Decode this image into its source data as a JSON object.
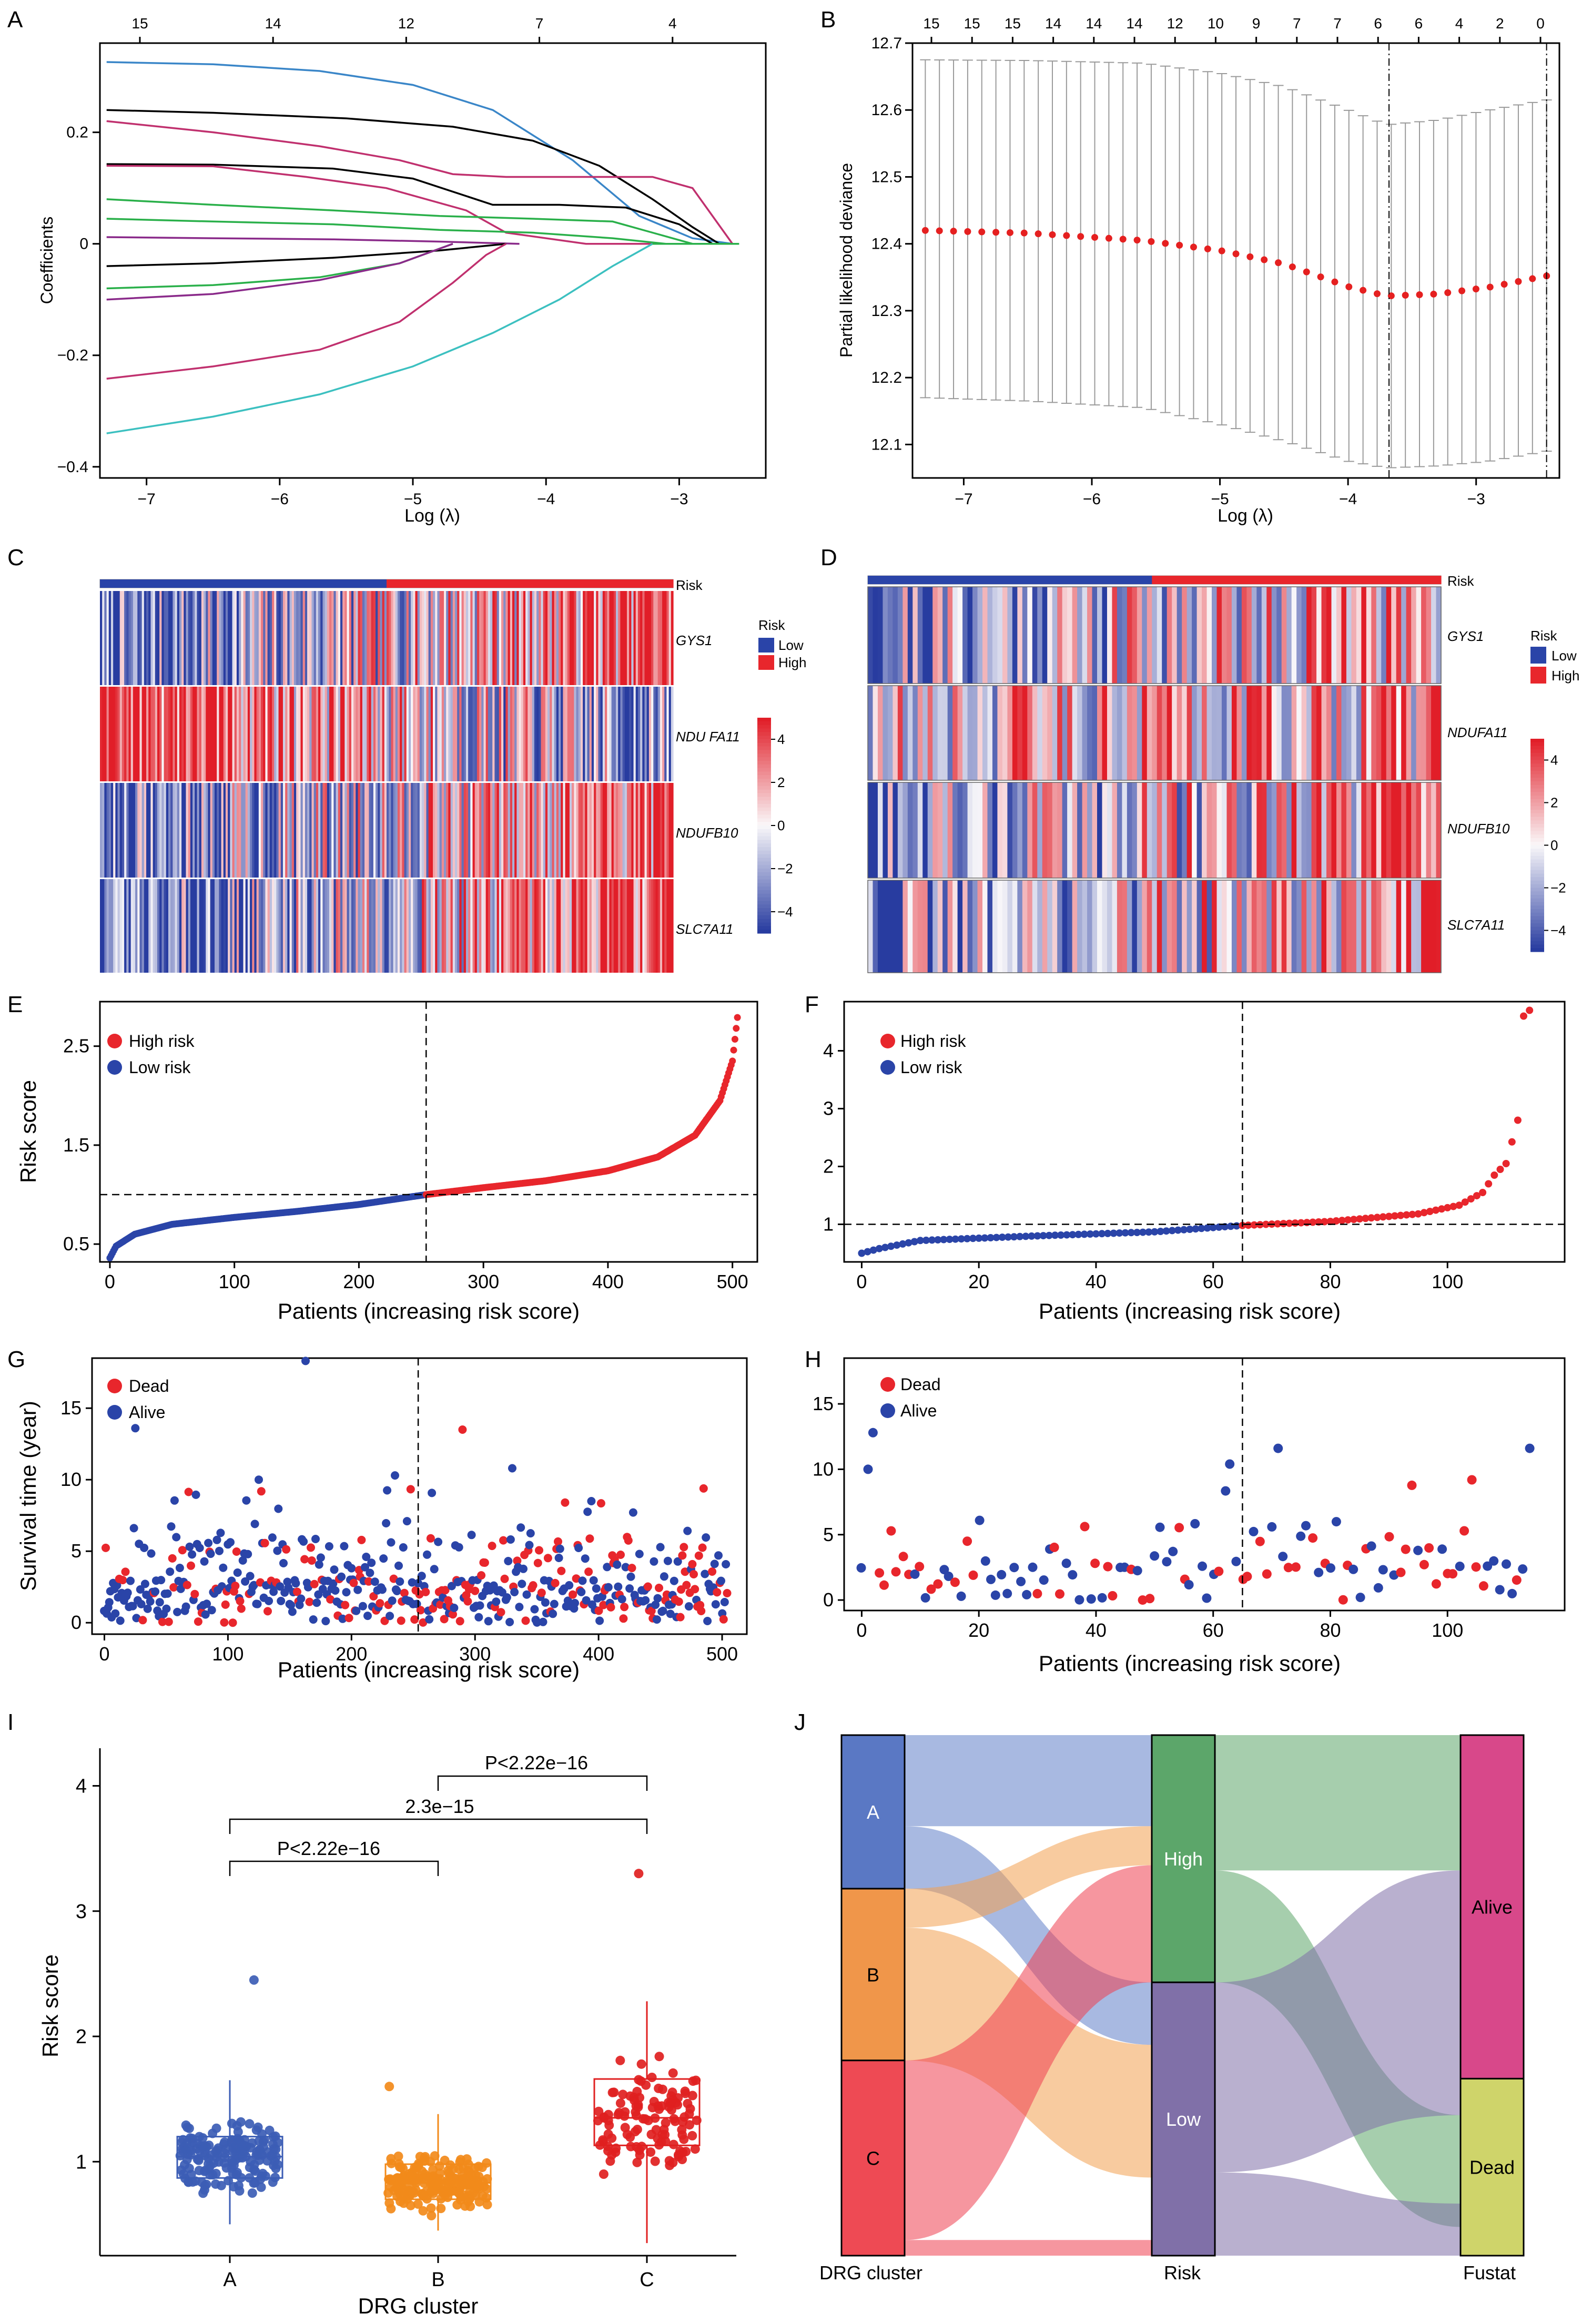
{
  "panels": {
    "A": {
      "letter": "A",
      "xlabel": "Log (λ)",
      "ylabel": "Coefficients",
      "top_ticks": [
        "15",
        "14",
        "12",
        "7",
        "4"
      ]
    },
    "B": {
      "letter": "B",
      "xlabel": "Log (λ)",
      "ylabel": "Partial likelihood deviance",
      "top_ticks": [
        "15",
        "15",
        "15",
        "14",
        "14",
        "14",
        "12",
        "10",
        "9",
        "7",
        "7",
        "6",
        "6",
        "4",
        "2",
        "0"
      ]
    },
    "C": {
      "letter": "C",
      "risk_label": "Risk",
      "legend_title": "Risk",
      "legend_low": "Low",
      "legend_high": "High",
      "genes": [
        "GYS1",
        "NDU FA11",
        "NDUFB10",
        "SLC7A11"
      ],
      "scale_ticks": [
        "4",
        "2",
        "0",
        "−2",
        "−4"
      ]
    },
    "D": {
      "letter": "D",
      "risk_label": "Risk",
      "legend_title": "Risk",
      "legend_low": "Low",
      "legend_high": "High",
      "genes": [
        "GYS1",
        "NDUFA11",
        "NDUFB10",
        "SLC7A11"
      ],
      "scale_ticks": [
        "4",
        "2",
        "0",
        "−2",
        "−4"
      ]
    },
    "E": {
      "letter": "E",
      "xlabel": "Patients (increasing risk score)",
      "ylabel": "Risk score",
      "legend": [
        "High risk",
        "Low risk"
      ]
    },
    "F": {
      "letter": "F",
      "xlabel": "Patients (increasing risk score)",
      "ylabel": "",
      "legend": [
        "High risk",
        "Low risk"
      ]
    },
    "G": {
      "letter": "G",
      "xlabel": "Patients (increasing risk score)",
      "ylabel": "Survival time (year)",
      "legend": [
        "Dead",
        "Alive"
      ]
    },
    "H": {
      "letter": "H",
      "xlabel": "Patients (increasing risk score)",
      "ylabel": "",
      "legend": [
        "Dead",
        "Alive"
      ]
    },
    "I": {
      "letter": "I",
      "xlabel": "DRG cluster",
      "ylabel": "Risk score",
      "comparisons": [
        "P<2.22e−16",
        "2.3e−15",
        "P<2.22e−16"
      ]
    },
    "J": {
      "letter": "J",
      "axis_labels": [
        "DRG cluster",
        "Risk",
        "Fustat"
      ]
    }
  },
  "colors": {
    "high": "#e8262c",
    "low": "#2a44a8",
    "blue_box": "#3c5db5",
    "orange": "#f28a1a",
    "red_box": "#e02020",
    "alive": "#d8488a",
    "dead": "#cfd46a",
    "sankey_high": "#5ca66a",
    "sankey_low": "#8070a8"
  },
  "chart_data": [
    {
      "panel": "A",
      "type": "line",
      "xlabel": "Log (λ)",
      "ylabel": "Coefficients",
      "xlim": [
        -7.35,
        -2.35
      ],
      "ylim": [
        -0.42,
        0.36
      ],
      "xticks": [
        -7,
        -6,
        -5,
        -4,
        -3
      ],
      "yticks": [
        -0.4,
        -0.2,
        0,
        0.2
      ],
      "top_axis": {
        "positions": [
          -7.05,
          -6.05,
          -5.05,
          -4.05,
          -3.05
        ],
        "labels": [
          "15",
          "14",
          "12",
          "7",
          "4"
        ]
      },
      "series": [
        {
          "color": "#3a86c8",
          "x": [
            -7.3,
            -6.5,
            -5.7,
            -5.0,
            -4.4,
            -3.8,
            -3.3,
            -2.9,
            -2.6
          ],
          "y": [
            0.326,
            0.322,
            0.31,
            0.285,
            0.24,
            0.15,
            0.05,
            0.01,
            0
          ]
        },
        {
          "color": "#000000",
          "x": [
            -7.3,
            -6.5,
            -5.5,
            -4.7,
            -4.1,
            -3.6,
            -3.2,
            -2.9,
            -2.7
          ],
          "y": [
            0.24,
            0.235,
            0.225,
            0.21,
            0.185,
            0.14,
            0.08,
            0.03,
            0
          ]
        },
        {
          "color": "#c0306e",
          "x": [
            -7.3,
            -6.5,
            -5.7,
            -5.1,
            -4.7,
            -4.3,
            -3.7,
            -3.2,
            -2.9,
            -2.6
          ],
          "y": [
            0.22,
            0.2,
            0.175,
            0.15,
            0.125,
            0.12,
            0.12,
            0.12,
            0.1,
            0
          ]
        },
        {
          "color": "#000000",
          "x": [
            -7.3,
            -6.5,
            -5.6,
            -5.0,
            -4.4,
            -3.9,
            -3.4,
            -3.0,
            -2.75
          ],
          "y": [
            0.143,
            0.142,
            0.135,
            0.117,
            0.07,
            0.07,
            0.065,
            0.035,
            0
          ]
        },
        {
          "color": "#c0306e",
          "x": [
            -7.3,
            -6.5,
            -5.8,
            -5.2,
            -4.6,
            -4.3,
            -3.7,
            -3.3,
            -3.0
          ],
          "y": [
            0.14,
            0.139,
            0.12,
            0.1,
            0.06,
            0.02,
            0.0,
            0.0,
            0
          ]
        },
        {
          "color": "#2ab04a",
          "x": [
            -7.3,
            -6.5,
            -5.6,
            -4.8,
            -4.1,
            -3.5,
            -3.2,
            -2.9
          ],
          "y": [
            0.08,
            0.07,
            0.06,
            0.05,
            0.045,
            0.04,
            0.02,
            0
          ]
        },
        {
          "color": "#2ab04a",
          "x": [
            -7.3,
            -6.5,
            -5.6,
            -4.8,
            -4.1,
            -3.5,
            -3.1
          ],
          "y": [
            0.045,
            0.04,
            0.035,
            0.025,
            0.02,
            0.01,
            0
          ]
        },
        {
          "color": "#8a2a8a",
          "x": [
            -7.3,
            -6.5,
            -5.6,
            -4.8,
            -4.2
          ],
          "y": [
            0.012,
            0.01,
            0.008,
            0.004,
            0
          ]
        },
        {
          "color": "#000000",
          "x": [
            -7.3,
            -6.5,
            -5.6,
            -4.8,
            -4.3
          ],
          "y": [
            -0.04,
            -0.035,
            -0.025,
            -0.012,
            0
          ]
        },
        {
          "color": "#2ab04a",
          "x": [
            -7.3,
            -6.5,
            -5.7,
            -5.1,
            -4.7
          ],
          "y": [
            -0.08,
            -0.074,
            -0.06,
            -0.035,
            0
          ]
        },
        {
          "color": "#8a2a8a",
          "x": [
            -7.3,
            -6.5,
            -5.7,
            -5.1,
            -4.7
          ],
          "y": [
            -0.1,
            -0.09,
            -0.065,
            -0.035,
            0
          ]
        },
        {
          "color": "#c0306e",
          "x": [
            -7.3,
            -6.5,
            -5.7,
            -5.1,
            -4.7,
            -4.45,
            -4.3
          ],
          "y": [
            -0.242,
            -0.22,
            -0.19,
            -0.14,
            -0.07,
            -0.02,
            0
          ]
        },
        {
          "color": "#3cc0c0",
          "x": [
            -7.3,
            -6.5,
            -5.7,
            -5.0,
            -4.4,
            -3.9,
            -3.5,
            -3.2
          ],
          "y": [
            -0.34,
            -0.31,
            -0.27,
            -0.22,
            -0.16,
            -0.1,
            -0.04,
            0
          ]
        }
      ]
    },
    {
      "panel": "B",
      "type": "scatter",
      "xlabel": "Log (λ)",
      "ylabel": "Partial likelihood deviance",
      "xlim": [
        -7.4,
        -2.35
      ],
      "ylim": [
        12.05,
        12.7
      ],
      "xticks": [
        -7,
        -6,
        -5,
        -4,
        -3
      ],
      "yticks": [
        12.1,
        12.2,
        12.3,
        12.4,
        12.5,
        12.6,
        12.7
      ],
      "n_points": 45,
      "x_first": -7.3,
      "x_last": -2.45,
      "mean_profile": {
        "x": [
          -7.3,
          -6.5,
          -5.6,
          -5.0,
          -4.5,
          -4.0,
          -3.7,
          -3.3,
          -2.9,
          -2.45
        ],
        "y": [
          12.42,
          12.416,
          12.405,
          12.39,
          12.37,
          12.336,
          12.322,
          12.325,
          12.335,
          12.352
        ]
      },
      "upper_profile": {
        "x": [
          -7.3,
          -6.5,
          -5.6,
          -5.0,
          -4.5,
          -4.0,
          -3.7,
          -3.3,
          -2.9,
          -2.45
        ],
        "y": [
          12.675,
          12.674,
          12.67,
          12.655,
          12.635,
          12.6,
          12.578,
          12.585,
          12.6,
          12.615
        ]
      },
      "lower_profile": {
        "x": [
          -7.3,
          -6.5,
          -5.6,
          -5.0,
          -4.5,
          -4.0,
          -3.7,
          -3.3,
          -2.9,
          -2.45
        ],
        "y": [
          12.17,
          12.165,
          12.155,
          12.13,
          12.105,
          12.075,
          12.065,
          12.068,
          12.075,
          12.09
        ]
      },
      "vlines": [
        -3.68,
        -2.45
      ],
      "top_axis": {
        "labels": [
          "15",
          "15",
          "15",
          "14",
          "14",
          "14",
          "12",
          "10",
          "9",
          "7",
          "7",
          "6",
          "6",
          "4",
          "2",
          "0"
        ]
      }
    },
    {
      "panel": "E",
      "type": "scatter",
      "xlabel": "Patients (increasing risk score)",
      "ylabel": "Risk score",
      "n": 505,
      "cutoff_index": 254,
      "threshold": 1.0,
      "xlim": [
        -8,
        520
      ],
      "ylim": [
        0.32,
        2.95
      ],
      "xticks": [
        0,
        100,
        200,
        300,
        400,
        500
      ],
      "yticks": [
        0.5,
        1.5,
        2.5
      ],
      "profile": {
        "x": [
          0,
          5,
          20,
          50,
          100,
          150,
          200,
          254,
          300,
          350,
          400,
          440,
          470,
          490,
          500,
          505
        ],
        "y": [
          0.36,
          0.48,
          0.6,
          0.7,
          0.77,
          0.83,
          0.9,
          1.0,
          1.07,
          1.14,
          1.24,
          1.38,
          1.6,
          1.95,
          2.35,
          2.9
        ]
      }
    },
    {
      "panel": "F",
      "type": "scatter",
      "xlabel": "Patients (increasing risk score)",
      "n": 115,
      "cutoff_index": 65,
      "threshold": 1.0,
      "xlim": [
        -3,
        120
      ],
      "ylim": [
        0.35,
        4.85
      ],
      "xticks": [
        0,
        20,
        40,
        60,
        80,
        100
      ],
      "yticks": [
        1,
        2,
        3,
        4
      ],
      "profile": {
        "x": [
          0,
          3,
          10,
          30,
          50,
          65,
          80,
          95,
          102,
          106,
          108,
          110,
          112,
          113,
          114
        ],
        "y": [
          0.5,
          0.58,
          0.72,
          0.8,
          0.87,
          0.98,
          1.05,
          1.18,
          1.33,
          1.55,
          1.85,
          2.05,
          2.8,
          4.6,
          4.7
        ]
      }
    },
    {
      "panel": "G",
      "type": "scatter",
      "xlabel": "Patients (increasing risk score)",
      "ylabel": "Survival time (year)",
      "n": 505,
      "cutoff_index": 254,
      "xlim": [
        -10,
        520
      ],
      "ylim": [
        -0.8,
        18.5
      ],
      "xticks": [
        0,
        100,
        200,
        300,
        400,
        500
      ],
      "yticks": [
        0,
        5,
        10,
        15
      ],
      "outliers": [
        {
          "x": 25,
          "y": 13.6,
          "status": "Alive"
        },
        {
          "x": 163,
          "y": 18.3,
          "status": "Alive"
        },
        {
          "x": 290,
          "y": 13.5,
          "status": "Dead"
        },
        {
          "x": 330,
          "y": 10.8,
          "status": "Alive"
        },
        {
          "x": 235,
          "y": 10.3,
          "status": "Alive"
        },
        {
          "x": 125,
          "y": 10.0,
          "status": "Alive"
        }
      ]
    },
    {
      "panel": "H",
      "type": "scatter",
      "xlabel": "Patients (increasing risk score)",
      "n": 115,
      "cutoff_index": 65,
      "xlim": [
        -3,
        120
      ],
      "ylim": [
        -0.8,
        18.5
      ],
      "xticks": [
        0,
        20,
        40,
        60,
        80,
        100
      ],
      "yticks": [
        0,
        5,
        10,
        15
      ],
      "outliers": [
        {
          "x": 2,
          "y": 12.8,
          "status": "Alive"
        },
        {
          "x": 1,
          "y": 10.0,
          "status": "Alive"
        },
        {
          "x": 71,
          "y": 11.6,
          "status": "Alive"
        },
        {
          "x": 114,
          "y": 11.6,
          "status": "Alive"
        },
        {
          "x": 63,
          "y": 10.4,
          "status": "Alive"
        }
      ]
    },
    {
      "panel": "I",
      "type": "box",
      "xlabel": "DRG cluster",
      "ylabel": "Risk score",
      "categories": [
        "A",
        "B",
        "C"
      ],
      "ylim": [
        0.25,
        4.3
      ],
      "yticks": [
        1,
        2,
        3,
        4
      ],
      "boxes": [
        {
          "name": "A",
          "q1": 0.87,
          "median": 1.04,
          "q3": 1.2,
          "min": 0.5,
          "max": 1.65,
          "n": 170,
          "max_point": 2.45
        },
        {
          "name": "B",
          "q1": 0.7,
          "median": 0.83,
          "q3": 0.98,
          "min": 0.45,
          "max": 1.38,
          "n": 200,
          "max_point": 1.6
        },
        {
          "name": "C",
          "q1": 1.13,
          "median": 1.35,
          "q3": 1.66,
          "min": 0.35,
          "max": 2.28,
          "n": 120,
          "max_point": 3.3
        }
      ]
    },
    {
      "panel": "J",
      "type": "sankey",
      "axes": [
        "DRG cluster",
        "Risk",
        "Fustat"
      ],
      "nodes": {
        "DRG cluster": [
          "A",
          "B",
          "C"
        ],
        "Risk": [
          "High",
          "Low"
        ],
        "Fustat": [
          "Alive",
          "Dead"
        ]
      },
      "flows": [
        {
          "from": "A",
          "to": "High",
          "value": 0.175
        },
        {
          "from": "A",
          "to": "Low",
          "value": 0.12
        },
        {
          "from": "B",
          "to": "High",
          "value": 0.075
        },
        {
          "from": "B",
          "to": "Low",
          "value": 0.255
        },
        {
          "from": "C",
          "to": "High",
          "value": 0.225
        },
        {
          "from": "C",
          "to": "Low",
          "value": 0.03
        },
        {
          "from": "High",
          "to": "Alive",
          "value": 0.26
        },
        {
          "from": "High",
          "to": "Dead",
          "value": 0.215
        },
        {
          "from": "Low",
          "to": "Alive",
          "value": 0.28
        },
        {
          "from": "Low",
          "to": "Dead",
          "value": 0.125
        }
      ]
    }
  ]
}
